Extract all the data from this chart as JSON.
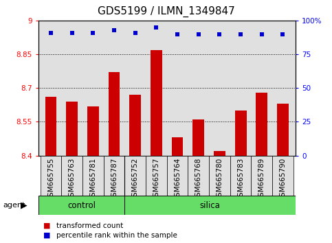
{
  "title": "GDS5199 / ILMN_1349847",
  "samples": [
    "GSM665755",
    "GSM665763",
    "GSM665781",
    "GSM665787",
    "GSM665752",
    "GSM665757",
    "GSM665764",
    "GSM665768",
    "GSM665780",
    "GSM665783",
    "GSM665789",
    "GSM665790"
  ],
  "bar_values": [
    8.66,
    8.64,
    8.62,
    8.77,
    8.67,
    8.87,
    8.48,
    8.56,
    8.42,
    8.6,
    8.68,
    8.63
  ],
  "percentile_values": [
    91,
    91,
    91,
    93,
    91,
    95,
    90,
    90,
    90,
    90,
    90,
    90
  ],
  "bar_color": "#cc0000",
  "dot_color": "#0000cc",
  "ylim_left": [
    8.4,
    9.0
  ],
  "ylim_right": [
    0,
    100
  ],
  "yticks_left": [
    8.4,
    8.55,
    8.7,
    8.85,
    9.0
  ],
  "yticks_right": [
    0,
    25,
    50,
    75,
    100
  ],
  "ytick_labels_left": [
    "8.4",
    "8.55",
    "8.7",
    "8.85",
    "9"
  ],
  "ytick_labels_right": [
    "0",
    "25",
    "50",
    "75",
    "100%"
  ],
  "hlines": [
    8.55,
    8.7,
    8.85
  ],
  "control_count": 4,
  "silica_count": 8,
  "control_label": "control",
  "silica_label": "silica",
  "agent_label": "agent",
  "legend_bar_label": "transformed count",
  "legend_dot_label": "percentile rank within the sample",
  "bg_color": "#e0e0e0",
  "band_color": "#66dd66",
  "title_fontsize": 11,
  "tick_fontsize": 7.5,
  "bar_width": 0.55,
  "fig_width": 4.83,
  "fig_height": 3.54,
  "fig_dpi": 100
}
